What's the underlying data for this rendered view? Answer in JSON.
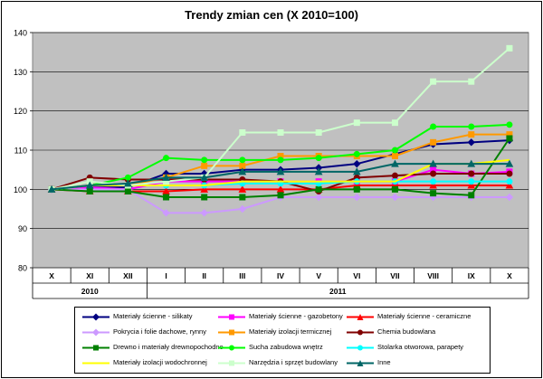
{
  "chart_data": {
    "type": "line",
    "title": "Trendy zmian cen (X 2010=100)",
    "xlabel": "",
    "ylabel": "",
    "ylim": [
      80,
      140
    ],
    "yticks": [
      80,
      90,
      100,
      110,
      120,
      130,
      140
    ],
    "grid": true,
    "legend_position": "bottom",
    "categories": [
      "X",
      "XI",
      "XII",
      "I",
      "II",
      "III",
      "IV",
      "V",
      "VI",
      "VII",
      "VIII",
      "IX",
      "X"
    ],
    "year_groups": [
      {
        "label": "2010",
        "from": 0,
        "to": 2
      },
      {
        "label": "2011",
        "from": 3,
        "to": 12
      }
    ],
    "plot_background": "#c0c0c0",
    "series": [
      {
        "name": "Materiały ścienne - silikaty",
        "color": "#000080",
        "marker": "diamond",
        "values": [
          100,
          100.5,
          100.5,
          104,
          104,
          105,
          105,
          105.5,
          106.5,
          109,
          111.5,
          112,
          112.5
        ]
      },
      {
        "name": "Materiały ścienne - gazobetony",
        "color": "#ff00ff",
        "marker": "square",
        "values": [
          100,
          100.5,
          100,
          102,
          102,
          102,
          102,
          102,
          102,
          102,
          105,
          104,
          104.5
        ]
      },
      {
        "name": "Materiały ścienne - ceramiczne",
        "color": "#ff0000",
        "marker": "triangle",
        "values": [
          100,
          99.5,
          99.5,
          99.5,
          100,
          100,
          100,
          100,
          101,
          101,
          101,
          101,
          101
        ]
      },
      {
        "name": "Pokrycia i folie dachowe, rynny",
        "color": "#cc99ff",
        "marker": "diamond",
        "values": [
          100,
          100,
          100,
          94,
          94,
          95,
          98,
          98,
          98,
          98,
          98,
          98,
          98
        ]
      },
      {
        "name": "Materiały izolacji termicznej",
        "color": "#ff9900",
        "marker": "square",
        "values": [
          100,
          101,
          101,
          103,
          106,
          106,
          108.5,
          108.5,
          108.5,
          108.5,
          112,
          114,
          114
        ]
      },
      {
        "name": "Chemia budowlana",
        "color": "#800000",
        "marker": "circle",
        "values": [
          100,
          103,
          102.5,
          102.5,
          102.5,
          102.5,
          102,
          99.5,
          103,
          103.5,
          104,
          104,
          104
        ]
      },
      {
        "name": "Drewno i materiały drewnopochodne",
        "color": "#008000",
        "marker": "square",
        "values": [
          100,
          99.5,
          99.5,
          98,
          98,
          98,
          98.5,
          100,
          100,
          100,
          99,
          98.5,
          113
        ]
      },
      {
        "name": "Sucha zabudowa wnętrz",
        "color": "#00ff00",
        "marker": "circle",
        "values": [
          100,
          101,
          103,
          108,
          107.5,
          107.5,
          107.5,
          108,
          109,
          110,
          116,
          116,
          116.5
        ]
      },
      {
        "name": "Stolarka otworowa, parapety",
        "color": "#00ffff",
        "marker": "circle",
        "values": [
          100,
          101,
          101,
          101,
          101,
          101.5,
          101.5,
          101.5,
          102,
          102,
          102,
          102,
          102
        ]
      },
      {
        "name": "Materiały izolacji wodochronnej",
        "color": "#ffff00",
        "marker": "none",
        "values": [
          100,
          101,
          101,
          101,
          101,
          102,
          102,
          102,
          102,
          102,
          106.5,
          106.5,
          107.5
        ]
      },
      {
        "name": "Narzędzia i sprzęt budowlany",
        "color": "#ccffcc",
        "marker": "square",
        "values": [
          100,
          102,
          101,
          102,
          103,
          114.5,
          114.5,
          114.5,
          117,
          117,
          127.5,
          127.5,
          136
        ]
      },
      {
        "name": "Inne",
        "color": "#006666",
        "marker": "triangle",
        "values": [
          100,
          101,
          101.5,
          103,
          103,
          104.5,
          104.5,
          104.5,
          104.5,
          106.5,
          106.5,
          106.5,
          106.5
        ]
      }
    ]
  }
}
